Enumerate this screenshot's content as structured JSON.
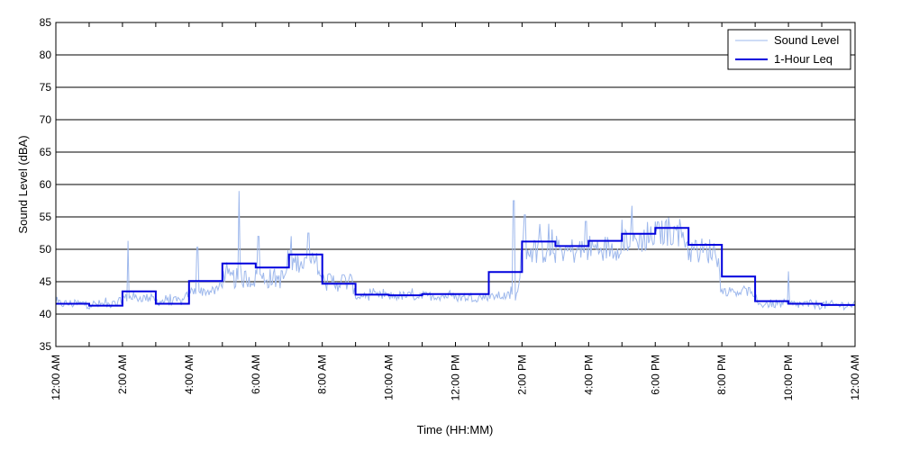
{
  "chart_data": {
    "type": "line",
    "xlabel": "Time (HH:MM)",
    "ylabel": "Sound Level (dBA)",
    "ylim": [
      35,
      85
    ],
    "yticks": [
      35,
      40,
      45,
      50,
      55,
      60,
      65,
      70,
      75,
      80,
      85
    ],
    "xlim": [
      "12:00 AM",
      "12:00 AM"
    ],
    "x_tick_labels": [
      "12:00 AM",
      "2:00 AM",
      "4:00 AM",
      "6:00 AM",
      "8:00 AM",
      "10:00 AM",
      "12:00 PM",
      "2:00 PM",
      "4:00 PM",
      "6:00 PM",
      "8:00 PM",
      "10:00 PM",
      "12:00 AM"
    ],
    "grid": "horizontal",
    "legend_position": "top-right",
    "series": [
      {
        "name": "Sound Level",
        "color": "#9eb8ec",
        "hourly_base": [
          41.6,
          41.5,
          42.5,
          42.0,
          43.5,
          45.5,
          45.5,
          48.0,
          45.0,
          42.8,
          42.8,
          42.8,
          42.6,
          42.8,
          49.8,
          49.8,
          50.2,
          51.5,
          52.5,
          49.8,
          43.5,
          41.6,
          41.5,
          41.4
        ],
        "peaks": [
          {
            "time": "2:10 AM",
            "value": 51.3
          },
          {
            "time": "4:15 AM",
            "value": 50.3
          },
          {
            "time": "5:30 AM",
            "value": 59.0
          },
          {
            "time": "6:05 AM",
            "value": 52.0
          },
          {
            "time": "7:35 AM",
            "value": 52.5
          },
          {
            "time": "1:45 PM",
            "value": 57.5
          },
          {
            "time": "2:05 PM",
            "value": 55.3
          },
          {
            "time": "3:55 PM",
            "value": 54.3
          },
          {
            "time": "6:20 PM",
            "value": 54.5
          },
          {
            "time": "10:00 PM",
            "value": 46.6
          }
        ]
      },
      {
        "name": "1-Hour Leq",
        "color": "#0000dd",
        "hours": [
          "12:00 AM",
          "1:00 AM",
          "2:00 AM",
          "3:00 AM",
          "4:00 AM",
          "5:00 AM",
          "6:00 AM",
          "7:00 AM",
          "8:00 AM",
          "9:00 AM",
          "10:00 AM",
          "11:00 AM",
          "12:00 PM",
          "1:00 PM",
          "2:00 PM",
          "3:00 PM",
          "4:00 PM",
          "5:00 PM",
          "6:00 PM",
          "7:00 PM",
          "8:00 PM",
          "9:00 PM",
          "10:00 PM",
          "11:00 PM"
        ],
        "values": [
          41.6,
          41.3,
          43.5,
          41.6,
          45.1,
          47.8,
          47.2,
          49.2,
          44.7,
          43.0,
          42.9,
          43.1,
          43.1,
          46.5,
          51.2,
          50.5,
          51.3,
          52.4,
          53.3,
          50.7,
          45.8,
          42.0,
          41.6,
          41.4
        ]
      }
    ]
  }
}
